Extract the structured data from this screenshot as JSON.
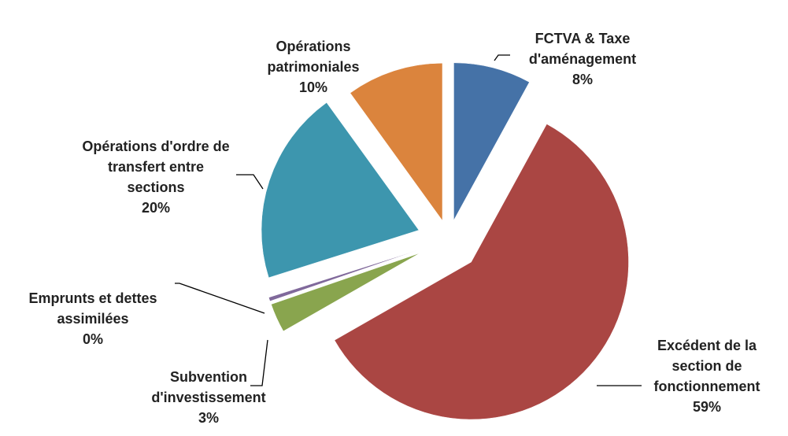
{
  "chart_data": {
    "type": "pie",
    "categories": [
      "FCTVA & Taxe d'aménagement",
      "Excédent de la section de fonctionnement",
      "Subvention d'investissement",
      "Emprunts et dettes assimilées",
      "Opérations d'ordre de transfert entre sections",
      "Opérations patrimoniales"
    ],
    "values": [
      8,
      59,
      3,
      0.4,
      20,
      10
    ],
    "value_labels": [
      "8%",
      "59%",
      "3%",
      "0%",
      "20%",
      "10%"
    ],
    "colors": [
      "#4572a7",
      "#aa4643",
      "#89a54e",
      "#80699b",
      "#3d96ae",
      "#db843d"
    ]
  }
}
